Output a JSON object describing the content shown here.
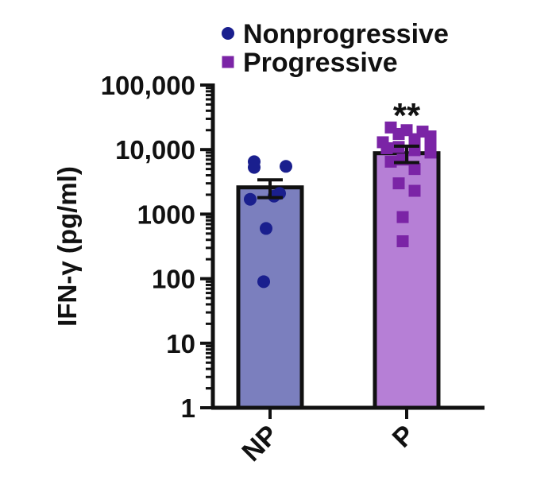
{
  "chart_data": {
    "type": "bar",
    "yscale": "log",
    "ylabel": "IFN-γ (pg/ml)",
    "ylim": [
      1,
      100000
    ],
    "yticks": [
      1,
      10,
      100,
      1000,
      10000,
      100000
    ],
    "ytick_labels": [
      "1",
      "10",
      "100",
      "1000",
      "10,000",
      "100,000"
    ],
    "categories": [
      "NP",
      "P"
    ],
    "series": [
      {
        "name": "Nonprogressive",
        "category": "NP",
        "marker": "circle",
        "bar_color": "#7b7fbe",
        "point_color": "#1a1f8e",
        "mean": 2600,
        "sem": 800,
        "points": [
          6500,
          5500,
          5300,
          2100,
          1700,
          1900,
          600,
          90
        ]
      },
      {
        "name": "Progressive",
        "category": "P",
        "marker": "square",
        "bar_color": "#b67fd6",
        "point_color": "#7b24a6",
        "mean": 8800,
        "sem": 2500,
        "points": [
          22000,
          20000,
          19000,
          17500,
          16000,
          14500,
          13000,
          12000,
          11000,
          10500,
          9800,
          9000,
          7000,
          6500,
          5000,
          3000,
          2300,
          900,
          380
        ]
      }
    ],
    "annotations": [
      {
        "text": "**",
        "category": "P"
      }
    ],
    "grid": false,
    "legend_position": "top"
  }
}
